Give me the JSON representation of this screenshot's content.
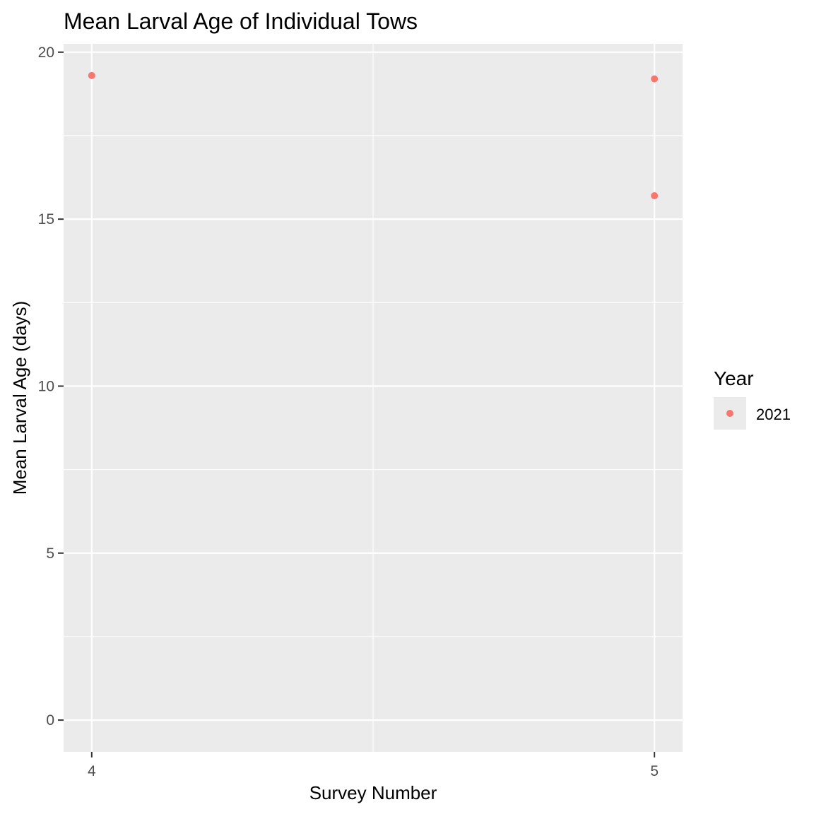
{
  "chart_data": {
    "type": "scatter",
    "title": "Mean Larval Age of Individual Tows",
    "xlabel": "Survey Number",
    "ylabel": "Mean Larval Age (days)",
    "x_ticks": [
      4,
      5
    ],
    "y_ticks": [
      0,
      5,
      10,
      15,
      20
    ],
    "xlim": [
      3.95,
      5.05
    ],
    "ylim": [
      -0.95,
      20.25
    ],
    "grid": true,
    "legend": {
      "title": "Year",
      "position": "right"
    },
    "series": [
      {
        "name": "2021",
        "color": "#F8766D",
        "points": [
          {
            "x": 4,
            "y": 19.3
          },
          {
            "x": 5,
            "y": 19.2
          },
          {
            "x": 5,
            "y": 15.7
          }
        ]
      }
    ]
  }
}
